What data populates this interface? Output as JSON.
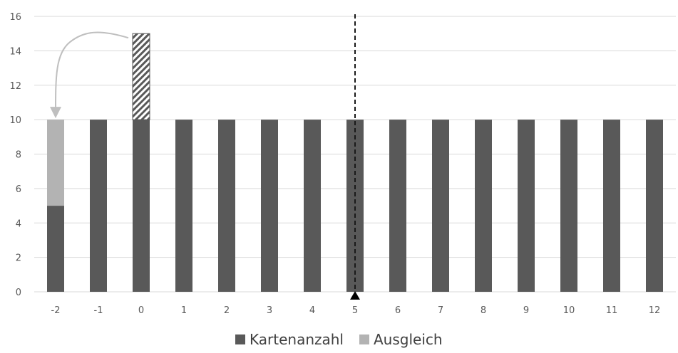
{
  "chart_data": {
    "type": "bar",
    "stacked": true,
    "categories": [
      "-2",
      "-1",
      "0",
      "1",
      "2",
      "3",
      "4",
      "5",
      "6",
      "7",
      "8",
      "9",
      "10",
      "11",
      "12"
    ],
    "series": [
      {
        "name": "Kartenanzahl",
        "color": "#595959",
        "values": [
          5,
          10,
          10,
          10,
          10,
          10,
          10,
          10,
          10,
          10,
          10,
          10,
          10,
          10,
          10
        ]
      },
      {
        "name": "Ausgleich",
        "color": "#b3b3b3",
        "values": [
          5,
          0,
          0,
          0,
          0,
          0,
          0,
          0,
          0,
          0,
          0,
          0,
          0,
          0,
          0
        ]
      }
    ],
    "excess": {
      "category": "0",
      "from": 10,
      "to": 15,
      "pattern": "hatched"
    },
    "arrow": {
      "from_category": "0",
      "to_category": "-2",
      "style": "curved"
    },
    "marker": {
      "category": "5",
      "style": "dashed-vertical-line-with-triangle"
    },
    "ylim": [
      0,
      16
    ],
    "yticks": [
      0,
      2,
      4,
      6,
      8,
      10,
      12,
      14,
      16
    ],
    "grid": true,
    "legend": "bottom-center",
    "title": "",
    "xlabel": "",
    "ylabel": ""
  }
}
